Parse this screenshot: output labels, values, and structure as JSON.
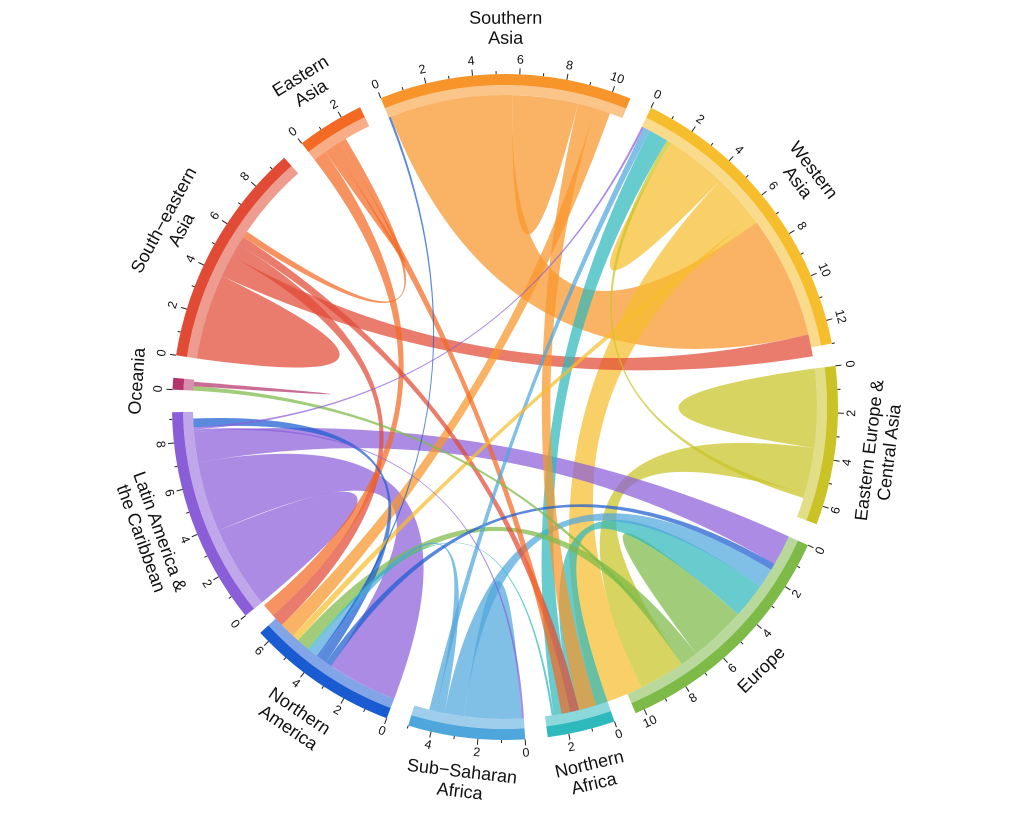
{
  "chart_data": {
    "type": "chord",
    "title": "",
    "regions": [
      {
        "name": "Oceania",
        "label_lines": [
          "Oceania"
        ],
        "total": 0.5,
        "color": "#b5346b",
        "ticks": [
          0
        ]
      },
      {
        "name": "South-eastern Asia",
        "label_lines": [
          "South−eastern",
          "Asia"
        ],
        "total": 9.7,
        "color": "#e14a34",
        "ticks": [
          0,
          2,
          4,
          6,
          8
        ]
      },
      {
        "name": "Eastern Asia",
        "label_lines": [
          "Eastern",
          "Asia"
        ],
        "total": 2.9,
        "color": "#f26a24",
        "ticks": [
          0,
          2
        ]
      },
      {
        "name": "Southern Asia",
        "label_lines": [
          "Southern",
          "Asia"
        ],
        "total": 10.8,
        "color": "#f8952a",
        "ticks": [
          0,
          2,
          4,
          6,
          8,
          10
        ]
      },
      {
        "name": "Western Asia",
        "label_lines": [
          "Western",
          "Asia"
        ],
        "total": 13.0,
        "color": "#f6bd2d",
        "ticks": [
          0,
          2,
          4,
          6,
          8,
          10,
          12
        ]
      },
      {
        "name": "Eastern Europe & Central Asia",
        "label_lines": [
          "Eastern Europe &",
          "Central Asia"
        ],
        "total": 6.8,
        "color": "#c9c325",
        "ticks": [
          0,
          2,
          4,
          6
        ]
      },
      {
        "name": "Europe",
        "label_lines": [
          "Europe"
        ],
        "total": 10.4,
        "color": "#7dba48",
        "ticks": [
          0,
          2,
          4,
          6,
          8,
          10
        ]
      },
      {
        "name": "Northern Africa",
        "label_lines": [
          "Northern",
          "Africa"
        ],
        "total": 2.9,
        "color": "#2eb9bd",
        "ticks": [
          0,
          2
        ]
      },
      {
        "name": "Sub-Saharan Africa",
        "label_lines": [
          "Sub−Saharan",
          "Africa"
        ],
        "total": 5.0,
        "color": "#4fa6dc",
        "ticks": [
          0,
          2,
          4
        ]
      },
      {
        "name": "Northern America",
        "label_lines": [
          "Northern",
          "America"
        ],
        "total": 6.5,
        "color": "#1a5bd1",
        "ticks": [
          0,
          2,
          4,
          6
        ]
      },
      {
        "name": "Latin America & the Caribbean",
        "label_lines": [
          "Latin America &",
          "the Caribbean"
        ],
        "total": 9.3,
        "color": "#8a5ed9",
        "ticks": [
          0,
          2,
          4,
          6,
          8
        ]
      }
    ],
    "flows": [
      {
        "from": "Latin America & the Caribbean",
        "to": "Latin America & the Caribbean",
        "value": 3.8
      },
      {
        "from": "Latin America & the Caribbean",
        "to": "Northern America",
        "value": 3.2
      },
      {
        "from": "Latin America & the Caribbean",
        "to": "Europe",
        "value": 1.4
      },
      {
        "from": "Latin America & the Caribbean",
        "to": "Sub-Saharan Africa",
        "value": 0.1
      },
      {
        "from": "Latin America & the Caribbean",
        "to": "Western Asia",
        "value": 0.1
      },
      {
        "from": "Northern America",
        "to": "Europe",
        "value": 0.3
      },
      {
        "from": "Northern America",
        "to": "Latin America & the Caribbean",
        "value": 0.4
      },
      {
        "from": "Northern America",
        "to": "Southern Asia",
        "value": 0.1
      },
      {
        "from": "Sub-Saharan Africa",
        "to": "Sub-Saharan Africa",
        "value": 2.6
      },
      {
        "from": "Sub-Saharan Africa",
        "to": "Europe",
        "value": 0.9
      },
      {
        "from": "Sub-Saharan Africa",
        "to": "Northern America",
        "value": 0.4
      },
      {
        "from": "Sub-Saharan Africa",
        "to": "Western Asia",
        "value": 0.3
      },
      {
        "from": "Northern Africa",
        "to": "Europe",
        "value": 1.6
      },
      {
        "from": "Northern Africa",
        "to": "Western Asia",
        "value": 0.9
      },
      {
        "from": "Northern Africa",
        "to": "Northern America",
        "value": 0.1
      },
      {
        "from": "Europe",
        "to": "Europe",
        "value": 2.6
      },
      {
        "from": "Europe",
        "to": "Northern America",
        "value": 0.6
      },
      {
        "from": "Europe",
        "to": "Oceania",
        "value": 0.2
      },
      {
        "from": "Eastern Europe & Central Asia",
        "to": "Eastern Europe & Central Asia",
        "value": 3.6
      },
      {
        "from": "Eastern Europe & Central Asia",
        "to": "Europe",
        "value": 2.1
      },
      {
        "from": "Eastern Europe & Central Asia",
        "to": "Western Asia",
        "value": 0.2
      },
      {
        "from": "Western Asia",
        "to": "Western Asia",
        "value": 2.8
      },
      {
        "from": "Western Asia",
        "to": "Europe",
        "value": 2.2
      },
      {
        "from": "Western Asia",
        "to": "Northern America",
        "value": 0.3
      },
      {
        "from": "Southern Asia",
        "to": "Western Asia",
        "value": 5.6
      },
      {
        "from": "Southern Asia",
        "to": "Southern Asia",
        "value": 3.0
      },
      {
        "from": "Southern Asia",
        "to": "Europe",
        "value": 0.8
      },
      {
        "from": "Southern Asia",
        "to": "Northern America",
        "value": 0.7
      },
      {
        "from": "South-eastern Asia",
        "to": "South-eastern Asia",
        "value": 3.9
      },
      {
        "from": "South-eastern Asia",
        "to": "Western Asia",
        "value": 1.0
      },
      {
        "from": "South-eastern Asia",
        "to": "Northern America",
        "value": 0.6
      },
      {
        "from": "South-eastern Asia",
        "to": "Europe",
        "value": 0.4
      },
      {
        "from": "Eastern Asia",
        "to": "Northern America",
        "value": 0.6
      },
      {
        "from": "Eastern Asia",
        "to": "Eastern Asia",
        "value": 0.4
      },
      {
        "from": "Eastern Asia",
        "to": "Europe",
        "value": 0.4
      },
      {
        "from": "Eastern Asia",
        "to": "South-eastern Asia",
        "value": 0.3
      },
      {
        "from": "Oceania",
        "to": "Oceania",
        "value": 0.2
      }
    ]
  }
}
